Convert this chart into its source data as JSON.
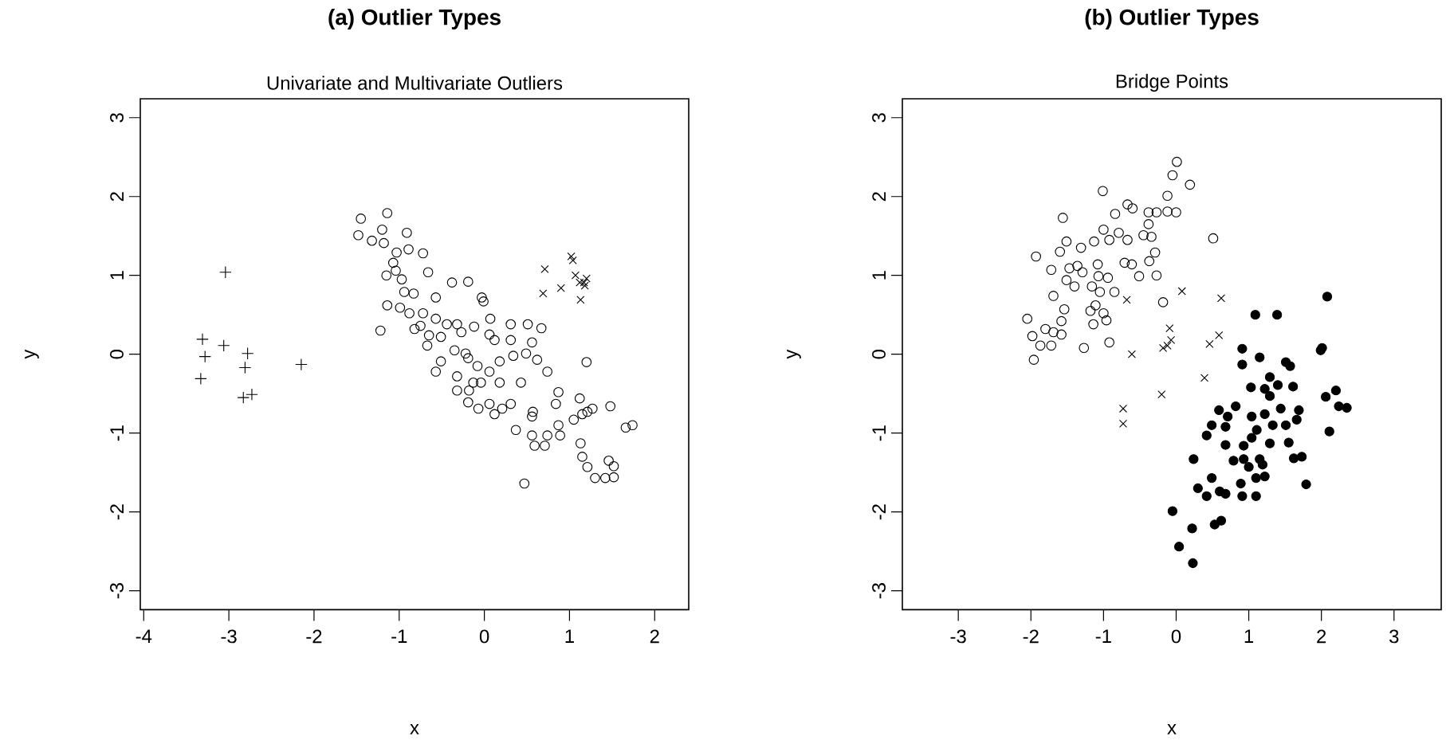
{
  "chart_data": [
    {
      "type": "scatter",
      "title": "**(a) Outlier Types**",
      "subtitle": "Univariate and Multivariate Outliers",
      "xlabel": "x",
      "ylabel": "y",
      "xlim": [
        -4.04,
        2.4
      ],
      "ylim": [
        -3.24,
        3.24
      ],
      "xticks": [
        -4,
        -3,
        -2,
        -1,
        0,
        1,
        2
      ],
      "yticks": [
        -3,
        -2,
        -1,
        0,
        1,
        2,
        3
      ],
      "series": [
        {
          "marker": "circle",
          "color": "#000000",
          "x": [
            -1.45,
            -1.48,
            -1.14,
            -1.2,
            -1.32,
            -1.18,
            -0.91,
            -0.89,
            -1.03,
            -0.72,
            -1.07,
            -1.04,
            -1.15,
            -0.97,
            -0.66,
            -0.94,
            -0.99,
            -1.14,
            -1.22,
            -0.83,
            -0.57,
            -0.38,
            -0.19,
            -0.03,
            -0.01,
            -0.72,
            -0.57,
            -0.82,
            -0.65,
            -0.67,
            -0.51,
            -0.32,
            -0.12,
            0.07,
            0.31,
            0.51,
            0.67,
            -0.35,
            -0.19,
            -0.08,
            0.06,
            0.18,
            0.34,
            0.49,
            0.62,
            0.74,
            -0.51,
            -0.57,
            -0.32,
            -0.18,
            -0.19,
            -0.07,
            0.06,
            0.21,
            0.12,
            0.31,
            0.37,
            0.56,
            0.59,
            0.71,
            0.74,
            0.87,
            0.84,
            0.87,
            0.89,
            0.56,
            0.57,
            1.12,
            1.05,
            1.15,
            1.21,
            1.27,
            1.13,
            1.15,
            1.21,
            1.3,
            1.42,
            1.52,
            1.46,
            1.52,
            1.48,
            1.66,
            1.74,
            1.2,
            0.47,
            -0.13,
            -0.22,
            0.12,
            0.31,
            0.56,
            0.43,
            0.18,
            -0.75,
            -0.88,
            -0.44,
            -0.27,
            0.06,
            -0.04,
            -0.32
          ],
          "values": [
            1.72,
            1.51,
            1.79,
            1.58,
            1.44,
            1.41,
            1.54,
            1.33,
            1.29,
            1.28,
            1.16,
            1.06,
            1.0,
            0.95,
            1.04,
            0.79,
            0.59,
            0.62,
            0.3,
            0.77,
            0.72,
            0.91,
            0.92,
            0.72,
            0.67,
            0.52,
            0.45,
            0.32,
            0.24,
            0.11,
            0.22,
            0.38,
            0.35,
            0.45,
            0.38,
            0.38,
            0.33,
            0.05,
            -0.05,
            -0.15,
            -0.22,
            -0.09,
            -0.02,
            0.01,
            -0.07,
            -0.22,
            -0.09,
            -0.22,
            -0.28,
            -0.46,
            -0.61,
            -0.69,
            -0.63,
            -0.69,
            -0.76,
            -0.63,
            -0.96,
            -1.03,
            -1.16,
            -1.16,
            -1.03,
            -0.48,
            -0.63,
            -0.9,
            -1.03,
            -0.79,
            -0.73,
            -0.56,
            -0.83,
            -0.76,
            -0.73,
            -0.69,
            -1.13,
            -1.3,
            -1.43,
            -1.57,
            -1.57,
            -1.56,
            -1.35,
            -1.42,
            -0.66,
            -0.93,
            -0.9,
            -0.1,
            -1.64,
            -0.36,
            0.01,
            0.18,
            0.18,
            0.15,
            -0.36,
            -0.36,
            0.36,
            0.52,
            0.38,
            0.28,
            0.25,
            -0.36,
            -0.46
          ]
        },
        {
          "marker": "plus",
          "color": "#000000",
          "x": [
            -3.04,
            -3.31,
            -3.28,
            -3.33,
            -3.06,
            -2.78,
            -2.81,
            -2.83,
            -2.73,
            -2.15
          ],
          "values": [
            1.04,
            0.19,
            -0.03,
            -0.31,
            0.11,
            0.01,
            -0.17,
            -0.55,
            -0.51,
            -0.13
          ]
        },
        {
          "marker": "cross",
          "color": "#000000",
          "x": [
            0.71,
            0.69,
            0.9,
            1.02,
            1.04,
            1.07,
            1.12,
            1.17,
            1.18,
            1.13,
            1.2
          ],
          "values": [
            1.08,
            0.77,
            0.84,
            1.24,
            1.19,
            1.0,
            0.91,
            0.91,
            0.87,
            0.69,
            0.96
          ]
        }
      ]
    },
    {
      "type": "scatter",
      "title": "**(b) Outlier Types**",
      "subtitle": "Bridge Points",
      "xlabel": "x",
      "ylabel": "y",
      "xlim": [
        -3.77,
        3.65
      ],
      "ylim": [
        -3.24,
        3.24
      ],
      "xticks": [
        -3,
        -2,
        -1,
        0,
        1,
        2,
        3
      ],
      "yticks": [
        -3,
        -2,
        -1,
        0,
        1,
        2,
        3
      ],
      "series": [
        {
          "marker": "circle",
          "color": "#000000",
          "x": [
            0.01,
            -0.05,
            0.19,
            -1.01,
            -0.12,
            -0.67,
            -0.6,
            -0.38,
            -0.27,
            -0.12,
            0.0,
            -0.84,
            -1.56,
            -0.79,
            -1.0,
            -0.38,
            -0.34,
            -0.45,
            -0.67,
            -0.92,
            -1.13,
            0.51,
            -1.51,
            -1.31,
            -1.6,
            -1.93,
            -0.29,
            -0.37,
            -0.71,
            -0.61,
            -1.08,
            -1.36,
            -1.72,
            -1.47,
            -1.29,
            -0.51,
            -0.27,
            -0.94,
            -1.51,
            -1.4,
            -1.16,
            -0.85,
            -1.69,
            -0.18,
            -1.11,
            -1.18,
            -1.0,
            -1.54,
            -2.05,
            -1.58,
            -1.14,
            -0.96,
            -1.8,
            -1.69,
            -1.98,
            -1.58,
            -0.92,
            -1.27,
            -1.72,
            -1.87,
            -1.96,
            -1.07,
            -1.05
          ],
          "values": [
            2.44,
            2.27,
            2.15,
            2.07,
            2.01,
            1.9,
            1.85,
            1.8,
            1.8,
            1.81,
            1.8,
            1.78,
            1.73,
            1.54,
            1.58,
            1.65,
            1.49,
            1.51,
            1.45,
            1.45,
            1.43,
            1.47,
            1.43,
            1.35,
            1.3,
            1.24,
            1.29,
            1.18,
            1.16,
            1.14,
            1.14,
            1.12,
            1.07,
            1.09,
            1.04,
            0.99,
            1.0,
            0.97,
            0.94,
            0.86,
            0.86,
            0.79,
            0.74,
            0.66,
            0.62,
            0.55,
            0.52,
            0.57,
            0.45,
            0.42,
            0.38,
            0.43,
            0.32,
            0.28,
            0.23,
            0.25,
            0.15,
            0.08,
            0.11,
            0.11,
            -0.07,
            0.99,
            0.79
          ]
        },
        {
          "marker": "cross",
          "color": "#000000",
          "x": [
            -0.68,
            -0.61,
            -0.73,
            -0.73,
            -0.2,
            -0.18,
            -0.12,
            -0.09,
            -0.07,
            0.08,
            0.39,
            0.46,
            0.59,
            0.62
          ],
          "values": [
            0.69,
            0.0,
            -0.69,
            -0.88,
            -0.51,
            0.08,
            0.11,
            0.33,
            0.18,
            0.8,
            -0.3,
            0.13,
            0.24,
            0.71
          ]
        },
        {
          "marker": "dot",
          "color": "#000000",
          "x": [
            2.08,
            1.09,
            1.39,
            0.91,
            1.15,
            0.91,
            1.51,
            1.57,
            1.99,
            2.01,
            1.29,
            1.03,
            1.22,
            1.4,
            1.61,
            2.06,
            2.2,
            2.24,
            2.35,
            0.59,
            0.82,
            0.71,
            0.49,
            0.68,
            0.42,
            1.04,
            1.22,
            1.44,
            1.69,
            1.66,
            1.11,
            1.33,
            1.51,
            2.11,
            0.68,
            0.93,
            1.29,
            1.55,
            0.24,
            0.79,
            0.93,
            1.15,
            1.0,
            1.19,
            1.62,
            1.73,
            0.49,
            0.3,
            0.89,
            1.1,
            1.22,
            1.79,
            0.42,
            0.6,
            0.68,
            0.91,
            1.1,
            -0.05,
            0.22,
            0.53,
            0.62,
            0.04,
            0.23,
            1.04,
            1.29
          ],
          "values": [
            0.73,
            0.5,
            0.5,
            0.07,
            -0.04,
            -0.13,
            -0.1,
            -0.15,
            0.05,
            0.08,
            -0.29,
            -0.42,
            -0.44,
            -0.39,
            -0.41,
            -0.54,
            -0.46,
            -0.66,
            -0.68,
            -0.71,
            -0.66,
            -0.79,
            -0.9,
            -0.92,
            -1.03,
            -0.79,
            -0.76,
            -0.69,
            -0.71,
            -0.83,
            -0.96,
            -0.9,
            -0.9,
            -0.98,
            -1.15,
            -1.16,
            -1.13,
            -1.12,
            -1.33,
            -1.35,
            -1.33,
            -1.33,
            -1.43,
            -1.4,
            -1.32,
            -1.3,
            -1.57,
            -1.7,
            -1.64,
            -1.57,
            -1.55,
            -1.65,
            -1.8,
            -1.74,
            -1.77,
            -1.8,
            -1.8,
            -1.99,
            -2.21,
            -2.16,
            -2.11,
            -2.44,
            -2.65,
            -1.06,
            -0.53
          ]
        }
      ]
    }
  ]
}
